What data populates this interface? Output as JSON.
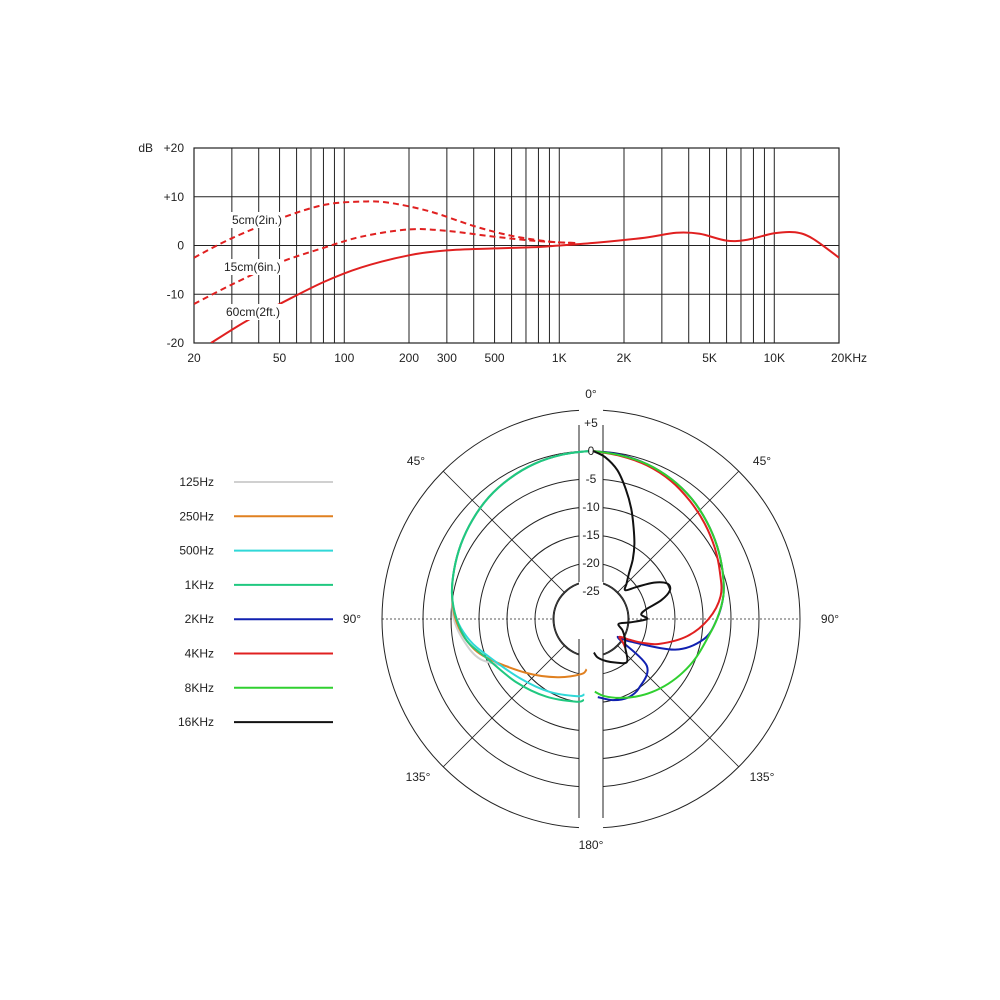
{
  "chart_data": [
    {
      "type": "line",
      "title": "",
      "ylabel": "dB",
      "xlabel": "",
      "xscale": "log",
      "xlim": [
        20,
        20000
      ],
      "ylim": [
        -20,
        20
      ],
      "grid": true,
      "x_tick_labels": [
        "20",
        "50",
        "100",
        "200",
        "300",
        "500",
        "1K",
        "2K",
        "5K",
        "10K",
        "20KHz"
      ],
      "y_tick_labels": [
        "+20",
        "+10",
        "0",
        "-10",
        "-20"
      ],
      "series": [
        {
          "name": "5cm(2in.)",
          "style": "dashed",
          "color": "#e02020",
          "x": [
            20,
            30,
            50,
            80,
            120,
            160,
            250,
            400,
            600,
            900,
            1200
          ],
          "y": [
            -2.5,
            1.5,
            5.5,
            8.3,
            9.0,
            8.8,
            7.0,
            4.0,
            2.0,
            0.8,
            0.5
          ]
        },
        {
          "name": "15cm(6in.)",
          "style": "dashed",
          "color": "#e02020",
          "x": [
            20,
            30,
            50,
            80,
            120,
            200,
            300,
            500,
            800,
            1200
          ],
          "y": [
            -12,
            -8,
            -3.5,
            -0.5,
            1.8,
            3.3,
            3.0,
            1.8,
            0.9,
            0.5
          ]
        },
        {
          "name": "60cm(2ft.)",
          "style": "solid",
          "color": "#e02020",
          "x": [
            24,
            35,
            50,
            80,
            120,
            200,
            300,
            500,
            800,
            1000,
            1500,
            2500,
            3500,
            4500,
            6000,
            7500,
            10000,
            12500,
            15000,
            20000
          ],
          "y": [
            -20,
            -15.5,
            -12,
            -7.5,
            -4.5,
            -2,
            -1,
            -0.6,
            -0.3,
            0,
            0.6,
            1.6,
            2.6,
            2.4,
            1,
            1.2,
            2.5,
            2.7,
            1.5,
            -2.5
          ]
        }
      ]
    },
    {
      "type": "polar",
      "title": "",
      "r_range": [
        -25,
        5
      ],
      "r_tick_labels": [
        "+5",
        "0",
        "-5",
        "-10",
        "-15",
        "-20",
        "-25"
      ],
      "angle_labels": {
        "top": "0°",
        "upper_left": "45°",
        "upper_right": "45°",
        "left": "90°",
        "right": "90°",
        "lower_left": "135°",
        "lower_right": "135°",
        "bottom": "180°"
      },
      "series": [
        {
          "name": "125Hz",
          "color": "#d0d0d0",
          "side": "left",
          "theta": [
            0,
            10,
            20,
            30,
            40,
            50,
            60,
            70,
            80,
            90,
            100,
            110,
            120
          ],
          "r": [
            0,
            -0.2,
            -0.5,
            -1,
            -1.6,
            -2.4,
            -3.2,
            -4,
            -4.8,
            -5.5,
            -7,
            -9,
            -13
          ]
        },
        {
          "name": "250Hz",
          "color": "#e08020",
          "side": "left",
          "theta": [
            0,
            10,
            20,
            30,
            40,
            50,
            60,
            70,
            80,
            90,
            100,
            110,
            130,
            150,
            170,
            175
          ],
          "r": [
            0,
            -0.2,
            -0.5,
            -1,
            -1.6,
            -2.4,
            -3.2,
            -4,
            -4.8,
            -5.8,
            -7.5,
            -10,
            -15,
            -18,
            -20,
            -21
          ]
        },
        {
          "name": "500Hz",
          "color": "#30d8d8",
          "side": "left",
          "theta": [
            0,
            10,
            20,
            30,
            40,
            50,
            60,
            70,
            80,
            90,
            100,
            110,
            130,
            150,
            170,
            175
          ],
          "r": [
            0,
            -0.2,
            -0.5,
            -1,
            -1.6,
            -2.4,
            -3.2,
            -4,
            -4.8,
            -6,
            -8,
            -10.5,
            -13.5,
            -15,
            -16,
            -16.5
          ]
        },
        {
          "name": "1KHz",
          "color": "#20c880",
          "side": "left",
          "theta": [
            0,
            10,
            20,
            30,
            40,
            50,
            60,
            70,
            80,
            90,
            100,
            110,
            130,
            150,
            170,
            175
          ],
          "r": [
            0,
            -0.2,
            -0.5,
            -1,
            -1.6,
            -2.4,
            -3.2,
            -4,
            -4.8,
            -6,
            -7.5,
            -10,
            -12.5,
            -14,
            -15,
            -15.5
          ]
        },
        {
          "name": "2KHz",
          "color": "#1020b0",
          "side": "right",
          "theta": [
            0,
            10,
            20,
            30,
            40,
            50,
            60,
            70,
            80,
            90,
            100,
            110,
            120,
            125,
            130,
            145,
            155,
            165,
            175
          ],
          "r": [
            0,
            -0.2,
            -0.6,
            -1.2,
            -2,
            -3,
            -4,
            -5,
            -6,
            -7.5,
            -9.5,
            -14,
            -22,
            -24,
            -17,
            -15,
            -14.5,
            -15,
            -16
          ]
        },
        {
          "name": "4KHz",
          "color": "#e02020",
          "side": "right",
          "theta": [
            0,
            10,
            20,
            30,
            40,
            50,
            60,
            70,
            80,
            90,
            100,
            110,
            115,
            118,
            122,
            126,
            130
          ],
          "r": [
            0,
            -0.4,
            -0.8,
            -1.5,
            -2.5,
            -3.5,
            -4.5,
            -5.5,
            -6.5,
            -9,
            -12.5,
            -17,
            -20,
            -22,
            -24,
            -23,
            -22
          ]
        },
        {
          "name": "8KHz",
          "color": "#30d030",
          "side": "right",
          "theta": [
            0,
            10,
            20,
            30,
            40,
            50,
            60,
            70,
            80,
            90,
            100,
            110,
            120,
            130,
            140,
            150,
            160,
            170,
            177
          ],
          "r": [
            0,
            -0.3,
            -0.6,
            -1.2,
            -2,
            -3,
            -4,
            -5,
            -6,
            -7.5,
            -9,
            -10,
            -11,
            -12,
            -13,
            -14,
            -15,
            -16,
            -17
          ]
        },
        {
          "name": "16KHz",
          "color": "#111111",
          "side": "right",
          "theta": [
            0,
            5,
            10,
            15,
            20,
            25,
            30,
            35,
            40,
            45,
            50,
            55,
            60,
            65,
            70,
            75,
            80,
            85,
            90,
            95,
            100,
            110,
            120,
            130,
            140,
            150,
            160,
            170,
            175
          ],
          "r": [
            0,
            -1,
            -3,
            -6,
            -9,
            -12,
            -14.5,
            -17,
            -19.5,
            -21,
            -22,
            -20,
            -17,
            -15,
            -15,
            -17,
            -20,
            -21,
            -20,
            -23,
            -25,
            -24,
            -23,
            -22,
            -20,
            -21,
            -22,
            -23,
            -24
          ]
        }
      ]
    }
  ]
}
